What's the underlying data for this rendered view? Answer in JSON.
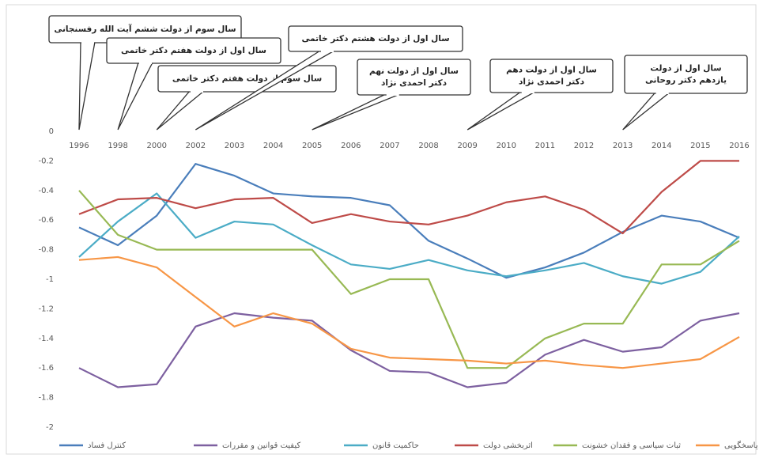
{
  "chart_data": {
    "type": "line",
    "categories": [
      "1996",
      "1998",
      "2000",
      "2002",
      "2003",
      "2004",
      "2005",
      "2006",
      "2007",
      "2008",
      "2009",
      "2010",
      "2011",
      "2012",
      "2013",
      "2014",
      "2015",
      "2016"
    ],
    "series": [
      {
        "name": "کنترل فساد",
        "color": "#4a7ebb",
        "values": [
          -0.65,
          -0.77,
          -0.57,
          -0.22,
          -0.3,
          -0.42,
          -0.44,
          -0.45,
          -0.5,
          -0.74,
          -0.86,
          -0.99,
          -0.92,
          -0.82,
          -0.68,
          -0.57,
          -0.61,
          -0.72
        ]
      },
      {
        "name": "کیفیت قوانین و مقررات",
        "color": "#7d60a0",
        "values": [
          -1.6,
          -1.73,
          -1.71,
          -1.32,
          -1.23,
          -1.26,
          -1.28,
          -1.48,
          -1.62,
          -1.63,
          -1.73,
          -1.7,
          -1.51,
          -1.41,
          -1.49,
          -1.46,
          -1.28,
          -1.23
        ]
      },
      {
        "name": "حاکمیت قانون",
        "color": "#4bacc6",
        "values": [
          -0.85,
          -0.61,
          -0.42,
          -0.72,
          -0.61,
          -0.63,
          -0.77,
          -0.9,
          -0.93,
          -0.87,
          -0.94,
          -0.98,
          -0.94,
          -0.89,
          -0.98,
          -1.03,
          -0.95,
          -0.71
        ]
      },
      {
        "name": "اثربخشی دولت",
        "color": "#be4b48",
        "values": [
          -0.56,
          -0.46,
          -0.45,
          -0.52,
          -0.46,
          -0.45,
          -0.62,
          -0.56,
          -0.61,
          -0.63,
          -0.57,
          -0.48,
          -0.44,
          -0.53,
          -0.69,
          -0.41,
          -0.2,
          -0.2
        ]
      },
      {
        "name": "ثبات سیاسی و فقدان خشونت",
        "color": "#98b954",
        "values": [
          -0.4,
          -0.7,
          -0.8,
          -0.8,
          -0.8,
          -0.8,
          -0.8,
          -1.1,
          -1.0,
          -1.0,
          -1.6,
          -1.6,
          -1.4,
          -1.3,
          -1.3,
          -0.9,
          -0.9,
          -0.74
        ]
      },
      {
        "name": "پاسخگویی",
        "color": "#f79646",
        "values": [
          -0.87,
          -0.85,
          -0.92,
          -1.12,
          -1.32,
          -1.23,
          -1.3,
          -1.47,
          -1.53,
          -1.54,
          -1.55,
          -1.57,
          -1.55,
          -1.58,
          -1.6,
          -1.57,
          -1.54,
          -1.39
        ]
      }
    ],
    "ylim": [
      -2,
      0
    ],
    "yticks": [
      0,
      -0.2,
      -0.4,
      -0.6,
      -0.8,
      -1,
      -1.2,
      -1.4,
      -1.6,
      -1.8,
      -2
    ],
    "grid": false,
    "legend": "bottom",
    "annotations": [
      {
        "lines": [
          "سال سوم از دولت ششم آیت الله رفسنجانی"
        ]
      },
      {
        "lines": [
          "سال اول از دولت هفتم دکتر خاتمی"
        ]
      },
      {
        "lines": [
          "سال سوم از دولت هفتم دکتر خاتمی"
        ]
      },
      {
        "lines": [
          "سال اول از دولت هشتم دکتر خاتمی"
        ]
      },
      {
        "lines": [
          "سال اول از دولت نهم",
          "دکتر احمدی نژاد"
        ]
      },
      {
        "lines": [
          "سال اول از دولت دهم",
          "دکتر احمدی نژاد"
        ]
      },
      {
        "lines": [
          "سال اول از دولت",
          "یازدهم دکتر روحانی"
        ]
      }
    ]
  }
}
